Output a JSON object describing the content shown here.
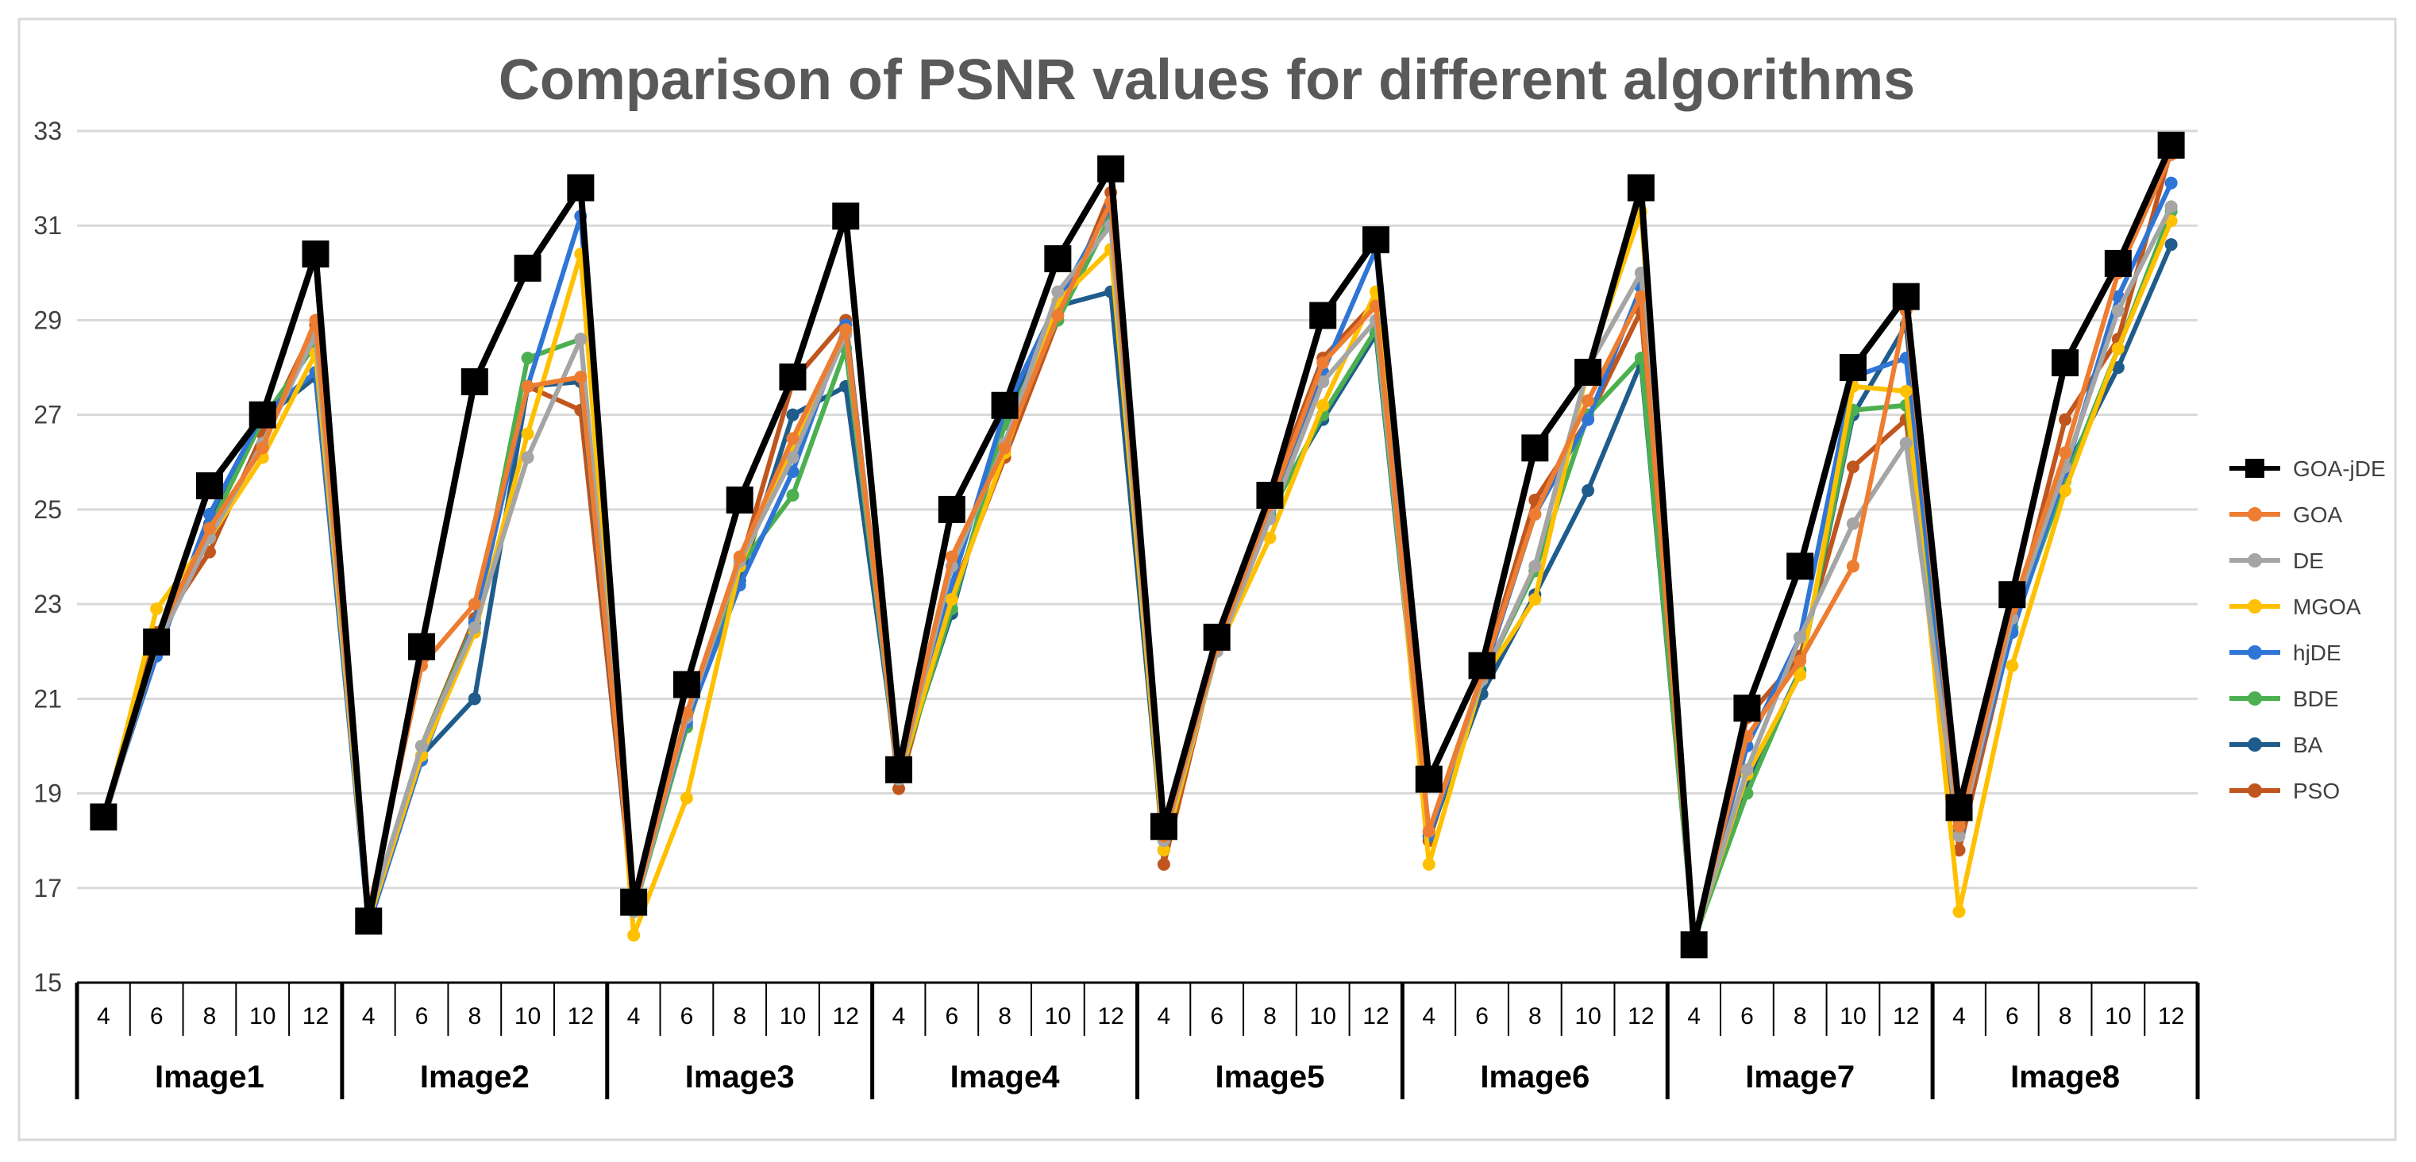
{
  "chart_data": {
    "type": "line",
    "title": "Comparison of PSNR values for different algorithms",
    "xlabel": "",
    "ylabel": "",
    "ylim": [
      15,
      33
    ],
    "yticks": [
      15,
      17,
      19,
      21,
      23,
      25,
      27,
      29,
      31,
      33
    ],
    "grid": true,
    "legend_position": "right",
    "sub_categories": [
      "4",
      "6",
      "8",
      "10",
      "12"
    ],
    "groups": [
      "Image1",
      "Image2",
      "Image3",
      "Image4",
      "Image5",
      "Image6",
      "Image7",
      "Image8"
    ],
    "series": [
      {
        "name": "GOA-jDE",
        "color": "#000000",
        "marker": "square",
        "values": [
          18.5,
          22.2,
          25.5,
          27.0,
          30.4,
          16.3,
          22.1,
          27.7,
          30.1,
          31.8,
          16.7,
          21.3,
          25.2,
          27.8,
          31.2,
          19.5,
          25.0,
          27.2,
          30.3,
          32.2,
          18.3,
          22.3,
          25.3,
          29.1,
          30.7,
          19.3,
          21.7,
          26.3,
          27.9,
          31.8,
          15.8,
          20.8,
          23.8,
          28.0,
          29.5,
          18.7,
          23.2,
          28.1,
          30.2,
          32.7
        ]
      },
      {
        "name": "GOA",
        "color": "#ED7D31",
        "marker": "circle",
        "values": [
          18.4,
          22.3,
          24.6,
          26.3,
          29.0,
          16.5,
          21.7,
          23.0,
          27.6,
          27.8,
          16.6,
          20.7,
          24.0,
          26.5,
          28.8,
          19.4,
          24.0,
          26.3,
          29.1,
          31.5,
          18.1,
          22.1,
          25.1,
          28.1,
          29.3,
          18.2,
          21.5,
          24.9,
          27.3,
          29.5,
          15.9,
          20.2,
          21.8,
          23.8,
          29.2,
          18.3,
          22.9,
          26.2,
          30.0,
          32.5
        ]
      },
      {
        "name": "DE",
        "color": "#A5A5A5",
        "marker": "circle",
        "values": [
          18.4,
          22.1,
          24.4,
          26.4,
          28.7,
          16.4,
          20.0,
          22.5,
          26.1,
          28.6,
          16.5,
          20.6,
          23.9,
          26.1,
          28.7,
          19.3,
          23.8,
          26.4,
          29.6,
          31.0,
          18.0,
          22.0,
          24.8,
          27.7,
          29.0,
          18.2,
          21.4,
          23.8,
          28.0,
          30.0,
          15.9,
          19.5,
          22.3,
          24.7,
          26.4,
          18.1,
          22.7,
          25.9,
          29.2,
          31.4
        ]
      },
      {
        "name": "MGOA",
        "color": "#FFC000",
        "marker": "circle",
        "values": [
          18.4,
          22.9,
          24.4,
          26.1,
          28.3,
          16.3,
          19.8,
          22.4,
          26.6,
          30.4,
          16.0,
          18.9,
          23.8,
          26.3,
          28.8,
          19.3,
          23.1,
          26.2,
          29.4,
          30.5,
          17.8,
          22.0,
          24.4,
          27.2,
          29.6,
          17.5,
          21.4,
          23.1,
          28.0,
          31.3,
          15.9,
          19.4,
          21.5,
          27.6,
          27.5,
          16.5,
          21.7,
          25.4,
          28.4,
          31.1
        ]
      },
      {
        "name": "hjDE",
        "color": "#2E75D6",
        "marker": "circle",
        "values": [
          18.5,
          21.9,
          24.9,
          27.0,
          27.9,
          16.2,
          19.7,
          22.6,
          27.6,
          31.2,
          16.6,
          20.5,
          23.4,
          25.8,
          28.9,
          19.3,
          23.4,
          27.1,
          29.4,
          31.4,
          17.8,
          22.1,
          25.0,
          27.9,
          30.5,
          18.1,
          21.4,
          24.9,
          26.9,
          29.7,
          15.9,
          20.0,
          22.3,
          27.8,
          28.2,
          18.2,
          22.4,
          25.8,
          29.5,
          31.9
        ]
      },
      {
        "name": "BDE",
        "color": "#4CAF50",
        "marker": "circle",
        "values": [
          18.4,
          22.3,
          24.6,
          26.9,
          28.5,
          16.4,
          20.0,
          22.6,
          28.2,
          28.6,
          16.5,
          20.4,
          23.8,
          25.3,
          28.4,
          19.3,
          22.9,
          26.8,
          29.0,
          31.2,
          18.0,
          22.1,
          24.9,
          27.0,
          28.8,
          18.1,
          21.4,
          23.7,
          27.0,
          28.2,
          15.9,
          19.0,
          21.6,
          27.1,
          27.2,
          18.5,
          22.5,
          25.6,
          28.4,
          31.3
        ]
      },
      {
        "name": "BA",
        "color": "#1F5C8B",
        "marker": "circle",
        "values": [
          18.4,
          22.1,
          24.7,
          26.9,
          27.8,
          16.3,
          19.8,
          21.0,
          27.6,
          27.7,
          16.5,
          20.6,
          23.5,
          27.0,
          27.6,
          19.4,
          22.8,
          26.9,
          29.3,
          29.6,
          17.8,
          22.0,
          25.0,
          26.9,
          28.7,
          18.1,
          21.1,
          23.2,
          25.4,
          28.1,
          15.9,
          19.2,
          21.6,
          27.0,
          28.9,
          18.6,
          22.4,
          25.8,
          28.0,
          30.6
        ]
      },
      {
        "name": "PSO",
        "color": "#C0561E",
        "marker": "circle",
        "values": [
          18.4,
          22.4,
          24.1,
          26.6,
          28.9,
          16.3,
          20.0,
          22.7,
          27.6,
          27.1,
          16.6,
          20.4,
          23.8,
          27.7,
          29.0,
          19.1,
          23.2,
          26.1,
          29.0,
          31.7,
          17.5,
          22.1,
          25.3,
          28.2,
          29.4,
          18.0,
          21.5,
          25.2,
          26.9,
          29.2,
          15.9,
          20.6,
          21.9,
          25.9,
          26.9,
          17.8,
          22.5,
          26.9,
          28.6,
          32.6
        ]
      }
    ]
  }
}
